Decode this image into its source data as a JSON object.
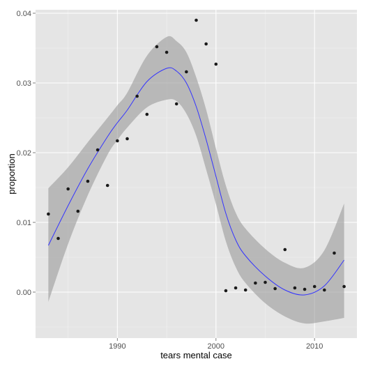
{
  "chart_data": {
    "type": "scatter",
    "title": "",
    "xlabel": "tears mental case",
    "ylabel": "proportion",
    "xlim": [
      1981.7,
      2014.3
    ],
    "ylim": [
      -0.0066,
      0.0405
    ],
    "x_ticks": [
      {
        "value": 1990,
        "label": "1990"
      },
      {
        "value": 2000,
        "label": "2000"
      },
      {
        "value": 2010,
        "label": "2010"
      }
    ],
    "y_ticks": [
      {
        "value": 0.0,
        "label": "0.00"
      },
      {
        "value": 0.01,
        "label": "0.01"
      },
      {
        "value": 0.02,
        "label": "0.02"
      },
      {
        "value": 0.03,
        "label": "0.03"
      },
      {
        "value": 0.04,
        "label": "0.04"
      }
    ],
    "grid": true,
    "background": "#e5e5e5",
    "grid_color": "#ffffff",
    "point_color": "#1a1a1a",
    "smooth_color": "#3333ff",
    "band_color": "#999999",
    "points": [
      {
        "x": 1983,
        "y": 0.0112
      },
      {
        "x": 1984,
        "y": 0.0077
      },
      {
        "x": 1985,
        "y": 0.0148
      },
      {
        "x": 1986,
        "y": 0.0116
      },
      {
        "x": 1987,
        "y": 0.0159
      },
      {
        "x": 1988,
        "y": 0.0204
      },
      {
        "x": 1989,
        "y": 0.0153
      },
      {
        "x": 1990,
        "y": 0.0217
      },
      {
        "x": 1991,
        "y": 0.022
      },
      {
        "x": 1992,
        "y": 0.0281
      },
      {
        "x": 1993,
        "y": 0.0255
      },
      {
        "x": 1994,
        "y": 0.0352
      },
      {
        "x": 1995,
        "y": 0.0344
      },
      {
        "x": 1996,
        "y": 0.027
      },
      {
        "x": 1997,
        "y": 0.0316
      },
      {
        "x": 1998,
        "y": 0.039
      },
      {
        "x": 1999,
        "y": 0.0356
      },
      {
        "x": 2000,
        "y": 0.0327
      },
      {
        "x": 2001,
        "y": 0.0002
      },
      {
        "x": 2002,
        "y": 0.0006
      },
      {
        "x": 2003,
        "y": 0.0003
      },
      {
        "x": 2004,
        "y": 0.0013
      },
      {
        "x": 2005,
        "y": 0.0014
      },
      {
        "x": 2006,
        "y": 0.0005
      },
      {
        "x": 2007,
        "y": 0.0061
      },
      {
        "x": 2008,
        "y": 0.0006
      },
      {
        "x": 2009,
        "y": 0.0004
      },
      {
        "x": 2010,
        "y": 0.0008
      },
      {
        "x": 2011,
        "y": 0.0003
      },
      {
        "x": 2012,
        "y": 0.0056
      },
      {
        "x": 2013,
        "y": 0.0008
      }
    ],
    "smooth": {
      "method": "loess",
      "x": [
        1983,
        1985,
        1987,
        1989,
        1990,
        1991,
        1993,
        1995,
        1996,
        1997,
        1998,
        1999,
        2000,
        2001,
        2002,
        2003,
        2005,
        2007,
        2009,
        2011,
        2013
      ],
      "fit": [
        0.0067,
        0.0124,
        0.0177,
        0.0223,
        0.0243,
        0.0261,
        0.0302,
        0.0321,
        0.0317,
        0.03,
        0.0266,
        0.0219,
        0.0166,
        0.0113,
        0.0075,
        0.0052,
        0.0023,
        0.0003,
        -0.0004,
        0.0009,
        0.0046
      ],
      "lower": [
        -0.0014,
        0.0069,
        0.0139,
        0.0197,
        0.0218,
        0.0236,
        0.0265,
        0.0276,
        0.0274,
        0.0256,
        0.0224,
        0.0176,
        0.0126,
        0.0073,
        0.0036,
        0.0013,
        -0.0016,
        -0.0035,
        -0.0045,
        -0.0042,
        -0.0037
      ],
      "upper": [
        0.0149,
        0.0179,
        0.0215,
        0.025,
        0.0268,
        0.0286,
        0.0339,
        0.0366,
        0.036,
        0.0344,
        0.0308,
        0.0262,
        0.0206,
        0.0153,
        0.0114,
        0.0091,
        0.0062,
        0.0042,
        0.0035,
        0.006,
        0.0127
      ]
    }
  }
}
